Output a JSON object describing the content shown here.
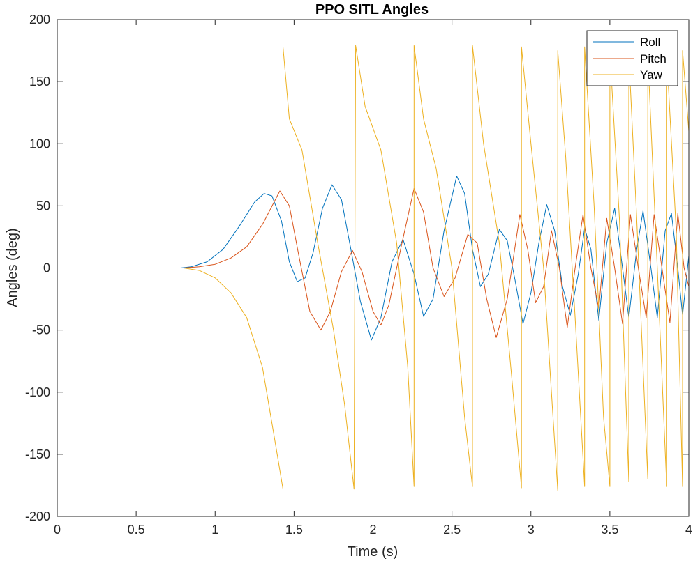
{
  "chart_data": {
    "type": "line",
    "title": "PPO SITL Angles",
    "xlabel": "Time (s)",
    "ylabel": "Angles (deg)",
    "xlim": [
      0,
      4
    ],
    "ylim": [
      -200,
      200
    ],
    "xticks": [
      0,
      0.5,
      1,
      1.5,
      2,
      2.5,
      3,
      3.5,
      4
    ],
    "xtick_labels": [
      "0",
      "0.5",
      "1",
      "1.5",
      "2",
      "2.5",
      "3",
      "3.5",
      "4"
    ],
    "yticks": [
      -200,
      -150,
      -100,
      -50,
      0,
      50,
      100,
      150,
      200
    ],
    "ytick_labels": [
      "-200",
      "-150",
      "-100",
      "-50",
      "0",
      "50",
      "100",
      "150",
      "200"
    ],
    "grid": false,
    "legend_position": "top-right",
    "series": [
      {
        "name": "Roll",
        "color": "#0072BD",
        "points": [
          [
            0,
            0
          ],
          [
            0.78,
            0
          ],
          [
            0.85,
            1
          ],
          [
            0.95,
            5
          ],
          [
            1.05,
            15
          ],
          [
            1.15,
            33
          ],
          [
            1.25,
            53
          ],
          [
            1.31,
            60
          ],
          [
            1.36,
            58
          ],
          [
            1.42,
            38
          ],
          [
            1.47,
            5
          ],
          [
            1.52,
            -11
          ],
          [
            1.57,
            -8
          ],
          [
            1.62,
            12
          ],
          [
            1.68,
            48
          ],
          [
            1.74,
            67
          ],
          [
            1.8,
            55
          ],
          [
            1.86,
            15
          ],
          [
            1.92,
            -27
          ],
          [
            1.99,
            -58
          ],
          [
            2.05,
            -40
          ],
          [
            2.12,
            5
          ],
          [
            2.19,
            23
          ],
          [
            2.26,
            -5
          ],
          [
            2.32,
            -39
          ],
          [
            2.38,
            -25
          ],
          [
            2.45,
            30
          ],
          [
            2.53,
            74
          ],
          [
            2.58,
            60
          ],
          [
            2.63,
            15
          ],
          [
            2.68,
            -15
          ],
          [
            2.73,
            -5
          ],
          [
            2.8,
            31
          ],
          [
            2.85,
            22
          ],
          [
            2.9,
            -10
          ],
          [
            2.95,
            -45
          ],
          [
            3.0,
            -20
          ],
          [
            3.05,
            20
          ],
          [
            3.1,
            51
          ],
          [
            3.15,
            30
          ],
          [
            3.2,
            -15
          ],
          [
            3.25,
            -38
          ],
          [
            3.3,
            -5
          ],
          [
            3.34,
            32
          ],
          [
            3.38,
            15
          ],
          [
            3.43,
            -42
          ],
          [
            3.48,
            20
          ],
          [
            3.53,
            48
          ],
          [
            3.58,
            0
          ],
          [
            3.62,
            -40
          ],
          [
            3.67,
            15
          ],
          [
            3.71,
            46
          ],
          [
            3.76,
            0
          ],
          [
            3.8,
            -40
          ],
          [
            3.85,
            30
          ],
          [
            3.89,
            44
          ],
          [
            3.93,
            0
          ],
          [
            3.96,
            -38
          ],
          [
            4.0,
            10
          ]
        ]
      },
      {
        "name": "Pitch",
        "color": "#D95319",
        "points": [
          [
            0,
            0
          ],
          [
            0.8,
            0
          ],
          [
            0.9,
            1
          ],
          [
            1.0,
            3
          ],
          [
            1.1,
            8
          ],
          [
            1.2,
            17
          ],
          [
            1.3,
            35
          ],
          [
            1.41,
            62
          ],
          [
            1.47,
            50
          ],
          [
            1.53,
            10
          ],
          [
            1.6,
            -35
          ],
          [
            1.67,
            -50
          ],
          [
            1.73,
            -35
          ],
          [
            1.8,
            -3
          ],
          [
            1.87,
            14
          ],
          [
            1.93,
            -3
          ],
          [
            2.0,
            -35
          ],
          [
            2.05,
            -46
          ],
          [
            2.1,
            -30
          ],
          [
            2.18,
            18
          ],
          [
            2.26,
            64
          ],
          [
            2.32,
            45
          ],
          [
            2.38,
            0
          ],
          [
            2.45,
            -23
          ],
          [
            2.52,
            -8
          ],
          [
            2.6,
            27
          ],
          [
            2.66,
            20
          ],
          [
            2.72,
            -25
          ],
          [
            2.78,
            -56
          ],
          [
            2.85,
            -25
          ],
          [
            2.93,
            43
          ],
          [
            2.98,
            15
          ],
          [
            3.03,
            -28
          ],
          [
            3.08,
            -15
          ],
          [
            3.13,
            30
          ],
          [
            3.18,
            0
          ],
          [
            3.23,
            -48
          ],
          [
            3.28,
            0
          ],
          [
            3.33,
            43
          ],
          [
            3.38,
            0
          ],
          [
            3.43,
            -33
          ],
          [
            3.48,
            40
          ],
          [
            3.53,
            0
          ],
          [
            3.58,
            -45
          ],
          [
            3.63,
            43
          ],
          [
            3.68,
            0
          ],
          [
            3.73,
            -40
          ],
          [
            3.78,
            43
          ],
          [
            3.83,
            0
          ],
          [
            3.88,
            -44
          ],
          [
            3.93,
            44
          ],
          [
            3.97,
            0
          ],
          [
            4.0,
            -15
          ]
        ]
      },
      {
        "name": "Yaw",
        "color": "#EDB120",
        "points": [
          [
            0,
            0
          ],
          [
            0.8,
            0
          ],
          [
            0.9,
            -2
          ],
          [
            1.0,
            -8
          ],
          [
            1.1,
            -20
          ],
          [
            1.2,
            -40
          ],
          [
            1.3,
            -80
          ],
          [
            1.38,
            -140
          ],
          [
            1.43,
            -178
          ],
          [
            1.43,
            178
          ],
          [
            1.47,
            120
          ],
          [
            1.55,
            95
          ],
          [
            1.65,
            20
          ],
          [
            1.75,
            -50
          ],
          [
            1.82,
            -110
          ],
          [
            1.88,
            -178
          ],
          [
            1.89,
            179
          ],
          [
            1.95,
            130
          ],
          [
            2.05,
            95
          ],
          [
            2.15,
            20
          ],
          [
            2.22,
            -80
          ],
          [
            2.26,
            -176
          ],
          [
            2.26,
            179
          ],
          [
            2.32,
            120
          ],
          [
            2.4,
            80
          ],
          [
            2.5,
            0
          ],
          [
            2.58,
            -120
          ],
          [
            2.63,
            -176
          ],
          [
            2.63,
            179
          ],
          [
            2.7,
            100
          ],
          [
            2.8,
            20
          ],
          [
            2.88,
            -90
          ],
          [
            2.94,
            -177
          ],
          [
            2.94,
            178
          ],
          [
            3.0,
            100
          ],
          [
            3.08,
            0
          ],
          [
            3.14,
            -120
          ],
          [
            3.17,
            -179
          ],
          [
            3.17,
            175
          ],
          [
            3.22,
            90
          ],
          [
            3.28,
            -40
          ],
          [
            3.34,
            -176
          ],
          [
            3.34,
            178
          ],
          [
            3.4,
            50
          ],
          [
            3.46,
            -120
          ],
          [
            3.5,
            -176
          ],
          [
            3.5,
            174
          ],
          [
            3.56,
            40
          ],
          [
            3.62,
            -172
          ],
          [
            3.62,
            172
          ],
          [
            3.67,
            40
          ],
          [
            3.74,
            -170
          ],
          [
            3.74,
            172
          ],
          [
            3.8,
            0
          ],
          [
            3.86,
            -176
          ],
          [
            3.86,
            172
          ],
          [
            3.92,
            30
          ],
          [
            3.96,
            -176
          ],
          [
            3.96,
            175
          ],
          [
            4.0,
            110
          ]
        ]
      }
    ]
  }
}
